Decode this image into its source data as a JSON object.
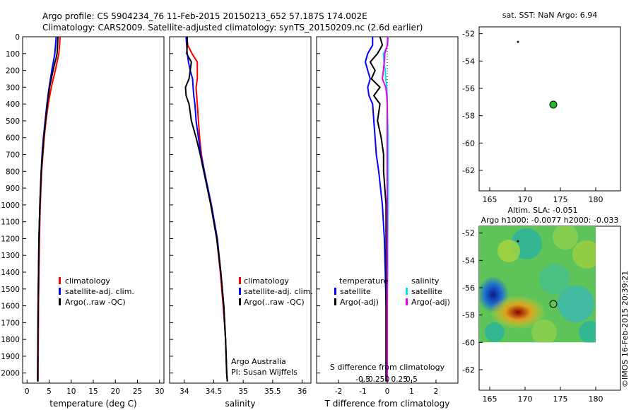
{
  "header": {
    "title_line1": "Argo profile: CS 5904234_76 11-Feb-2015 20150213_652 57.187S 174.002E",
    "title_line2": "Climatology: CARS2009. Satellite-adjusted climatology: synTS_20150209.nc (2.6d earlier)"
  },
  "colors": {
    "climatology": "#ff0000",
    "satellite": "#0000ff",
    "argo": "#000000",
    "salinity_satellite": "#00e5ee",
    "salinity_argo": "#ee00ee",
    "float_marker": "#22bb22"
  },
  "shared_depth_axis": {
    "label_ticks": [
      "0",
      "100",
      "200",
      "300",
      "400",
      "500",
      "600",
      "700",
      "800",
      "900",
      "1000",
      "1100",
      "1200",
      "1300",
      "1400",
      "1500",
      "1600",
      "1700",
      "1800",
      "1900",
      "2000"
    ],
    "ylim": [
      0,
      2060
    ]
  },
  "legend_temperature": [
    "climatology",
    "satellite-adj. clim.",
    "Argo(..raw -QC)"
  ],
  "legend_salinity": [
    "climatology",
    "satellite-adj. clim.",
    "Argo(..raw -QC)"
  ],
  "legend_diff": {
    "temperature_header": "temperature",
    "salinity_header": "salinity",
    "items_left": [
      "satellite",
      "Argo(-adj)"
    ],
    "items_right": [
      "satellite",
      "Argo(-adj)"
    ]
  },
  "annotations": {
    "argo_australia": "Argo Australia",
    "pi": "PI: Susan Wijffels",
    "imos_stamp": "©IMOS 16-Feb-2015 20:39:21"
  },
  "chart_data": [
    {
      "type": "line",
      "title": "",
      "xlabel": "temperature (deg C)",
      "ylabel": "",
      "xlim": [
        -1,
        31
      ],
      "ylim": [
        2060,
        0
      ],
      "x_ticks": [
        "0",
        "5",
        "10",
        "15",
        "20",
        "25",
        "30"
      ],
      "depth": [
        0,
        100,
        200,
        300,
        400,
        500,
        600,
        700,
        800,
        1000,
        1200,
        1400,
        1600,
        1800,
        2000,
        2050
      ],
      "series": [
        {
          "name": "climatology",
          "color": "#ff0000",
          "values": [
            7.5,
            7.2,
            6.4,
            5.5,
            4.8,
            4.3,
            3.9,
            3.6,
            3.3,
            3.0,
            2.8,
            2.7,
            2.6,
            2.55,
            2.5,
            2.5
          ]
        },
        {
          "name": "satellite-adj. clim.",
          "color": "#0000ff",
          "values": [
            6.6,
            6.3,
            5.6,
            5.0,
            4.5,
            4.1,
            3.7,
            3.4,
            3.2,
            2.9,
            2.7,
            2.6,
            2.5,
            2.45,
            2.4,
            2.4
          ]
        },
        {
          "name": "Argo(..raw -QC)",
          "color": "#000000",
          "values": [
            7.0,
            6.8,
            5.9,
            5.1,
            4.6,
            4.2,
            3.8,
            3.5,
            3.2,
            2.9,
            2.7,
            2.6,
            2.5,
            2.45,
            2.4,
            2.4
          ]
        }
      ]
    },
    {
      "type": "line",
      "xlabel": "salinity",
      "xlim": [
        33.75,
        36.15
      ],
      "ylim": [
        2060,
        0
      ],
      "x_ticks": [
        "34",
        "34.5",
        "35",
        "35.5",
        "36"
      ],
      "depth": [
        0,
        50,
        100,
        150,
        200,
        250,
        300,
        350,
        400,
        500,
        600,
        700,
        800,
        1000,
        1200,
        1400,
        1600,
        1800,
        2000,
        2050
      ],
      "series": [
        {
          "name": "climatology",
          "color": "#ff0000",
          "values": [
            34.04,
            34.06,
            34.13,
            34.22,
            34.22,
            34.22,
            34.2,
            34.21,
            34.22,
            34.24,
            34.26,
            34.29,
            34.34,
            34.45,
            34.55,
            34.61,
            34.66,
            34.7,
            34.72,
            34.73
          ]
        },
        {
          "name": "satellite-adj. clim.",
          "color": "#0000ff",
          "values": [
            34.03,
            34.04,
            34.05,
            34.07,
            34.1,
            34.14,
            34.15,
            34.16,
            34.18,
            34.2,
            34.24,
            34.28,
            34.34,
            34.46,
            34.56,
            34.62,
            34.67,
            34.7,
            34.72,
            34.73
          ]
        },
        {
          "name": "Argo(..raw -QC)",
          "color": "#000000",
          "values": [
            34.05,
            34.05,
            34.04,
            34.12,
            34.1,
            34.08,
            34.02,
            34.03,
            34.08,
            34.12,
            34.2,
            34.27,
            34.33,
            34.45,
            34.55,
            34.62,
            34.67,
            34.7,
            34.72,
            34.73
          ]
        }
      ]
    },
    {
      "type": "line",
      "xlabel": "T difference from climatology",
      "top_axis_label": "S difference from climatology",
      "xlim": [
        -2.9,
        2.9
      ],
      "ylim": [
        2060,
        0
      ],
      "x_ticks": [
        "-2",
        "-1",
        "0",
        "1",
        "2"
      ],
      "top_ticks": [
        "-0.5",
        "-0.25",
        "0",
        "0.25",
        "0.5"
      ],
      "depth": [
        0,
        50,
        100,
        150,
        200,
        250,
        300,
        350,
        400,
        500,
        600,
        700,
        800,
        1000,
        1200,
        1400,
        1600,
        1800,
        2000,
        2050
      ],
      "series": [
        {
          "name": "temperature satellite",
          "color": "#0000ff",
          "values": [
            -0.6,
            -0.6,
            -0.8,
            -0.9,
            -0.8,
            -0.7,
            -0.8,
            -0.75,
            -0.6,
            -0.55,
            -0.5,
            -0.45,
            -0.35,
            -0.2,
            -0.12,
            -0.08,
            -0.05,
            -0.05,
            -0.05,
            -0.05
          ]
        },
        {
          "name": "temperature Argo(-adj)",
          "color": "#000000",
          "values": [
            -0.3,
            -0.2,
            -0.4,
            -0.7,
            -0.5,
            -0.65,
            -0.3,
            -0.55,
            -0.3,
            -0.4,
            -0.25,
            -0.15,
            -0.15,
            -0.05,
            -0.05,
            -0.05,
            -0.05,
            -0.05,
            -0.05,
            -0.05
          ]
        },
        {
          "name": "salinity satellite",
          "color": "#00e5ee",
          "values": [
            0.02,
            0.01,
            -0.08,
            -0.07,
            -0.04,
            -0.03,
            -0.01,
            0.0,
            0.0,
            0.01,
            0.02,
            0.02,
            0.02,
            0.02,
            0.01,
            0.01,
            0.0,
            0.0,
            0.0,
            0.0
          ]
        },
        {
          "name": "salinity Argo(-adj)",
          "color": "#ee00ee",
          "values": [
            0.01,
            0.0,
            -0.05,
            -0.06,
            -0.08,
            -0.1,
            -0.03,
            -0.01,
            0.0,
            0.0,
            0.0,
            0.0,
            0.0,
            0.0,
            0.0,
            0.0,
            0.0,
            0.0,
            0.0,
            0.0
          ]
        }
      ]
    },
    {
      "type": "scatter",
      "title": "sat. SST: NaN Argo: 6.94",
      "xlim": [
        163.5,
        183.5
      ],
      "ylim": [
        -63.5,
        -51.5
      ],
      "x_ticks": [
        "165",
        "170",
        "175",
        "180"
      ],
      "y_ticks": [
        "-52",
        "-54",
        "-56",
        "-58",
        "-60",
        "-62"
      ],
      "points": [
        {
          "name": "previous position",
          "x": 169,
          "y": -52.6
        },
        {
          "name": "float position",
          "x": 174.0,
          "y": -57.19
        }
      ]
    },
    {
      "type": "heatmap",
      "title_line1": "Altim. SLA: -0.051",
      "title_line2": "Argo h1000: -0.0077 h2000: -0.033",
      "xlim": [
        163.5,
        183.5
      ],
      "ylim": [
        -63.5,
        -51.5
      ],
      "x_ticks": [
        "165",
        "170",
        "175",
        "180"
      ],
      "y_ticks": [
        "-52",
        "-54",
        "-56",
        "-58",
        "-60",
        "-62"
      ],
      "field_extent": {
        "lon": [
          163.5,
          180
        ],
        "lat": [
          -60,
          -51.5
        ]
      },
      "features": [
        {
          "name": "low anomaly",
          "lon": 165.5,
          "lat": -56.5,
          "sign": "negative"
        },
        {
          "name": "high anomaly",
          "lon": 169.0,
          "lat": -57.8,
          "sign": "positive"
        }
      ],
      "points": [
        {
          "name": "previous position",
          "x": 169,
          "y": -52.6
        },
        {
          "name": "float position",
          "x": 174.0,
          "y": -57.19
        }
      ]
    }
  ]
}
